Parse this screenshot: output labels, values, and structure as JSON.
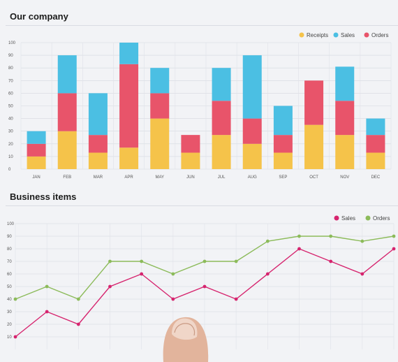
{
  "charts": {
    "bar_title": "Our company",
    "line_title": "Business items"
  },
  "chart_data": [
    {
      "type": "bar",
      "stacked": true,
      "title": "Our company",
      "categories": [
        "JAN",
        "FEB",
        "MAR",
        "APR",
        "MAY",
        "JUN",
        "JUL",
        "AUG",
        "SEP",
        "OCT",
        "NOV",
        "DEC"
      ],
      "series": [
        {
          "name": "Receipts",
          "color": "#f5c34a",
          "values": [
            10,
            30,
            13,
            17,
            40,
            13,
            27,
            20,
            13,
            35,
            27,
            13
          ]
        },
        {
          "name": "Orders",
          "color": "#e8546a",
          "values": [
            10,
            30,
            14,
            66,
            20,
            14,
            27,
            20,
            14,
            35,
            27,
            14
          ]
        },
        {
          "name": "Sales",
          "color": "#4bbfe3",
          "values": [
            10,
            30,
            33,
            17,
            20,
            0,
            26,
            50,
            23,
            0,
            27,
            13
          ]
        }
      ],
      "legend_order": [
        "Receipts",
        "Sales",
        "Orders"
      ],
      "yticks": [
        0,
        10,
        20,
        30,
        40,
        50,
        60,
        70,
        80,
        90,
        100
      ],
      "ylim": [
        0,
        100
      ],
      "grid": true,
      "legend": "top-right"
    },
    {
      "type": "line",
      "title": "Business items",
      "series": [
        {
          "name": "Sales",
          "color": "#d6246e",
          "values": [
            10,
            30,
            20,
            50,
            60,
            40,
            50,
            40,
            60,
            80,
            70,
            60,
            80
          ]
        },
        {
          "name": "Orders",
          "color": "#8cbb5a",
          "values": [
            40,
            50,
            40,
            70,
            70,
            60,
            70,
            70,
            86,
            90,
            90,
            86,
            90
          ]
        }
      ],
      "yticks": [
        10,
        20,
        30,
        40,
        50,
        60,
        70,
        80,
        90,
        100
      ],
      "ylim": [
        10,
        100
      ],
      "grid": true,
      "legend": "top-right"
    }
  ]
}
